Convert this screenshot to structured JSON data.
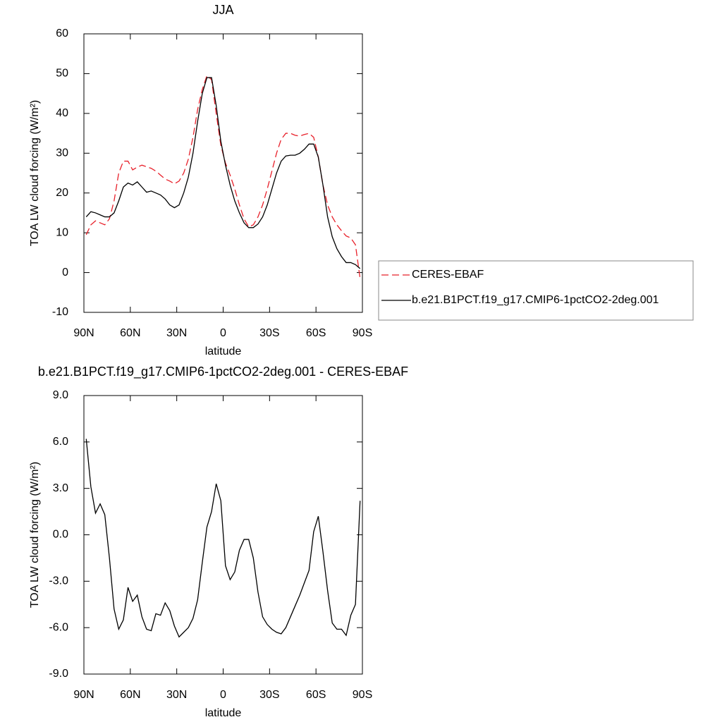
{
  "chart_data": [
    {
      "type": "line",
      "title": "JJA",
      "xlabel": "latitude",
      "ylabel": "TOA LW cloud forcing (W/m²)",
      "x": [
        88.5,
        85.5,
        82.5,
        79.5,
        76.5,
        73.5,
        70.5,
        67.5,
        64.5,
        61.5,
        58.5,
        55.5,
        52.5,
        49.5,
        46.5,
        43.5,
        40.5,
        37.5,
        34.5,
        31.5,
        28.5,
        25.5,
        22.5,
        19.5,
        16.5,
        13.5,
        10.5,
        7.5,
        4.5,
        1.5,
        -1.5,
        -4.5,
        -7.5,
        -10.5,
        -13.5,
        -16.5,
        -19.5,
        -22.5,
        -25.5,
        -28.5,
        -31.5,
        -34.5,
        -37.5,
        -40.5,
        -43.5,
        -46.5,
        -49.5,
        -52.5,
        -55.5,
        -58.5,
        -61.5,
        -64.5,
        -67.5,
        -70.5,
        -73.5,
        -76.5,
        -79.5,
        -82.5,
        -85.5,
        -88.5
      ],
      "xlim": [
        90,
        -90
      ],
      "xticks": [
        {
          "value": 90,
          "label": "90N"
        },
        {
          "value": 60,
          "label": "60N"
        },
        {
          "value": 30,
          "label": "30N"
        },
        0,
        {
          "value": -30,
          "label": "30S"
        },
        {
          "value": -60,
          "label": "60S"
        },
        {
          "value": -90,
          "label": "90S"
        }
      ],
      "ylim": [
        -10,
        60
      ],
      "yticks": [
        -10,
        0,
        10,
        20,
        30,
        40,
        50,
        60
      ],
      "legend": "right",
      "series": [
        {
          "name": "CERES-EBAF",
          "color": "#e8202a",
          "dash": "dashed",
          "values": [
            9.5,
            12,
            13,
            12.5,
            12,
            13.5,
            18,
            25,
            28,
            28,
            25.8,
            26.5,
            27,
            26.6,
            26.2,
            25.5,
            24.5,
            23.5,
            23,
            22.3,
            23,
            25,
            28.5,
            34,
            41,
            46,
            49.5,
            48.5,
            40,
            32,
            27.5,
            24.5,
            21,
            17,
            13.5,
            11.5,
            12,
            14,
            17,
            21,
            25.5,
            30,
            33.5,
            35,
            35,
            34.5,
            34.3,
            34.7,
            35,
            34,
            29,
            22,
            17,
            14,
            12,
            10.5,
            9.2,
            8.7,
            7,
            -1.5
          ]
        },
        {
          "name": "b.e21.B1PCT.f19_g17.CMIP6-1pctCO2-2deg.001",
          "color": "#000000",
          "dash": "solid",
          "values": [
            14,
            15.3,
            15,
            14.5,
            14,
            14,
            15,
            18,
            21.5,
            22.5,
            22,
            22.8,
            21.5,
            20.2,
            20.5,
            20,
            19.5,
            18.5,
            17,
            16.3,
            17,
            20,
            24,
            30,
            38,
            45,
            49,
            49,
            42,
            33,
            27,
            22,
            18,
            15,
            12.5,
            11.3,
            11.3,
            12.2,
            14,
            17,
            21,
            25,
            28,
            29.3,
            29.5,
            29.5,
            30,
            31,
            32.3,
            32.3,
            29,
            22,
            14,
            9,
            6,
            4,
            2.5,
            2.5,
            2,
            1
          ]
        }
      ]
    },
    {
      "type": "line",
      "title": "b.e21.B1PCT.f19_g17.CMIP6-1pctCO2-2deg.001 - CERES-EBAF",
      "xlabel": "latitude",
      "ylabel": "TOA LW cloud forcing (W/m²)",
      "x": [
        88.5,
        85.5,
        82.5,
        79.5,
        76.5,
        73.5,
        70.5,
        67.5,
        64.5,
        61.5,
        58.5,
        55.5,
        52.5,
        49.5,
        46.5,
        43.5,
        40.5,
        37.5,
        34.5,
        31.5,
        28.5,
        25.5,
        22.5,
        19.5,
        16.5,
        13.5,
        10.5,
        7.5,
        4.5,
        1.5,
        -1.5,
        -4.5,
        -7.5,
        -10.5,
        -13.5,
        -16.5,
        -19.5,
        -22.5,
        -25.5,
        -28.5,
        -31.5,
        -34.5,
        -37.5,
        -40.5,
        -43.5,
        -46.5,
        -49.5,
        -52.5,
        -55.5,
        -58.5,
        -61.5,
        -64.5,
        -67.5,
        -70.5,
        -73.5,
        -76.5,
        -79.5,
        -82.5,
        -85.5,
        -88.5
      ],
      "xlim": [
        90,
        -90
      ],
      "xticks": [
        {
          "value": 90,
          "label": "90N"
        },
        {
          "value": 60,
          "label": "60N"
        },
        {
          "value": 30,
          "label": "30N"
        },
        0,
        {
          "value": -30,
          "label": "30S"
        },
        {
          "value": -60,
          "label": "60S"
        },
        {
          "value": -90,
          "label": "90S"
        }
      ],
      "ylim": [
        -9,
        9
      ],
      "yticks": [
        {
          "value": -9,
          "label": "-9.0"
        },
        {
          "value": -6,
          "label": "-6.0"
        },
        {
          "value": -3,
          "label": "-3.0"
        },
        {
          "value": 0,
          "label": "0.0"
        },
        {
          "value": 3,
          "label": "3.0"
        },
        {
          "value": 6,
          "label": "6.0"
        },
        {
          "value": 9,
          "label": "9.0"
        }
      ],
      "color": "#000000",
      "values": [
        6.2,
        3.1,
        1.4,
        2,
        1.3,
        -1.5,
        -4.8,
        -6.1,
        -5.5,
        -3.4,
        -4.3,
        -3.9,
        -5.3,
        -6.1,
        -6.2,
        -5.1,
        -5.2,
        -4.4,
        -4.9,
        -5.9,
        -6.6,
        -6.3,
        -6,
        -5.4,
        -4.2,
        -1.8,
        0.5,
        1.5,
        3.3,
        2.2,
        -2,
        -2.9,
        -2.4,
        -1,
        -0.3,
        -0.3,
        -1.5,
        -3.7,
        -5.3,
        -5.8,
        -6.1,
        -6.3,
        -6.4,
        -6,
        -5.3,
        -4.6,
        -3.9,
        -3.1,
        -2.3,
        0.2,
        1.2,
        -1.1,
        -3.6,
        -5.7,
        -6.1,
        -6.1,
        -6.5,
        -5.2,
        -4.5,
        2.2
      ]
    }
  ]
}
